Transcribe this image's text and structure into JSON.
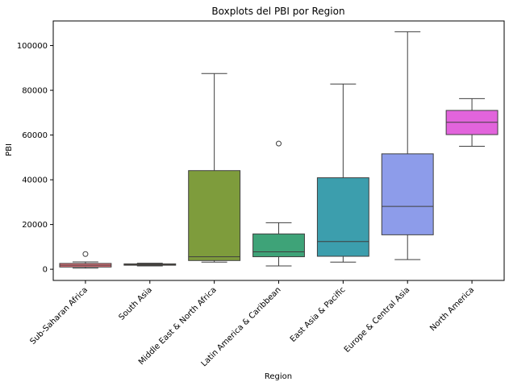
{
  "chart_data": {
    "type": "boxplot",
    "title": "Boxplots del PBI por Region",
    "xlabel": "Region",
    "ylabel": "PBI",
    "ylim": [
      -5000,
      111000
    ],
    "yticks": [
      0,
      20000,
      40000,
      60000,
      80000,
      100000
    ],
    "ytick_labels": [
      "0",
      "20000",
      "40000",
      "60000",
      "80000",
      "100000"
    ],
    "grid": false,
    "categories": [
      "Sub-Saharan Africa",
      "South Asia",
      "Middle East & North Africa",
      "Latin America & Caribbean",
      "East Asia & Pacific",
      "Europe & Central Asia",
      "North America"
    ],
    "boxes": [
      {
        "category": "Sub-Saharan Africa",
        "whisker_low": 500,
        "q1": 1000,
        "median": 1800,
        "q3": 2600,
        "whisker_high": 3300,
        "outliers": [
          6800
        ],
        "color": "#e8737c"
      },
      {
        "category": "South Asia",
        "whisker_low": 1500,
        "q1": 1800,
        "median": 2100,
        "q3": 2400,
        "whisker_high": 2700,
        "outliers": [],
        "color": "#bb8a3b"
      },
      {
        "category": "Middle East & North Africa",
        "whisker_low": 3200,
        "q1": 3900,
        "median": 5600,
        "q3": 44100,
        "whisker_high": 87500,
        "outliers": [],
        "color": "#7e9c3c"
      },
      {
        "category": "Latin America & Caribbean",
        "whisker_low": 1500,
        "q1": 5600,
        "median": 7800,
        "q3": 15800,
        "whisker_high": 20800,
        "outliers": [
          56200
        ],
        "color": "#3ea378"
      },
      {
        "category": "East Asia & Pacific",
        "whisker_low": 3200,
        "q1": 5800,
        "median": 12400,
        "q3": 40900,
        "whisker_high": 82800,
        "outliers": [],
        "color": "#3c9ead"
      },
      {
        "category": "Europe & Central Asia",
        "whisker_low": 4300,
        "q1": 15400,
        "median": 28100,
        "q3": 51600,
        "whisker_high": 106200,
        "outliers": [],
        "color": "#8d9cea"
      },
      {
        "category": "North America",
        "whisker_low": 55000,
        "q1": 60200,
        "median": 65700,
        "q3": 71000,
        "whisker_high": 76300,
        "outliers": [],
        "color": "#e264dc"
      }
    ]
  }
}
